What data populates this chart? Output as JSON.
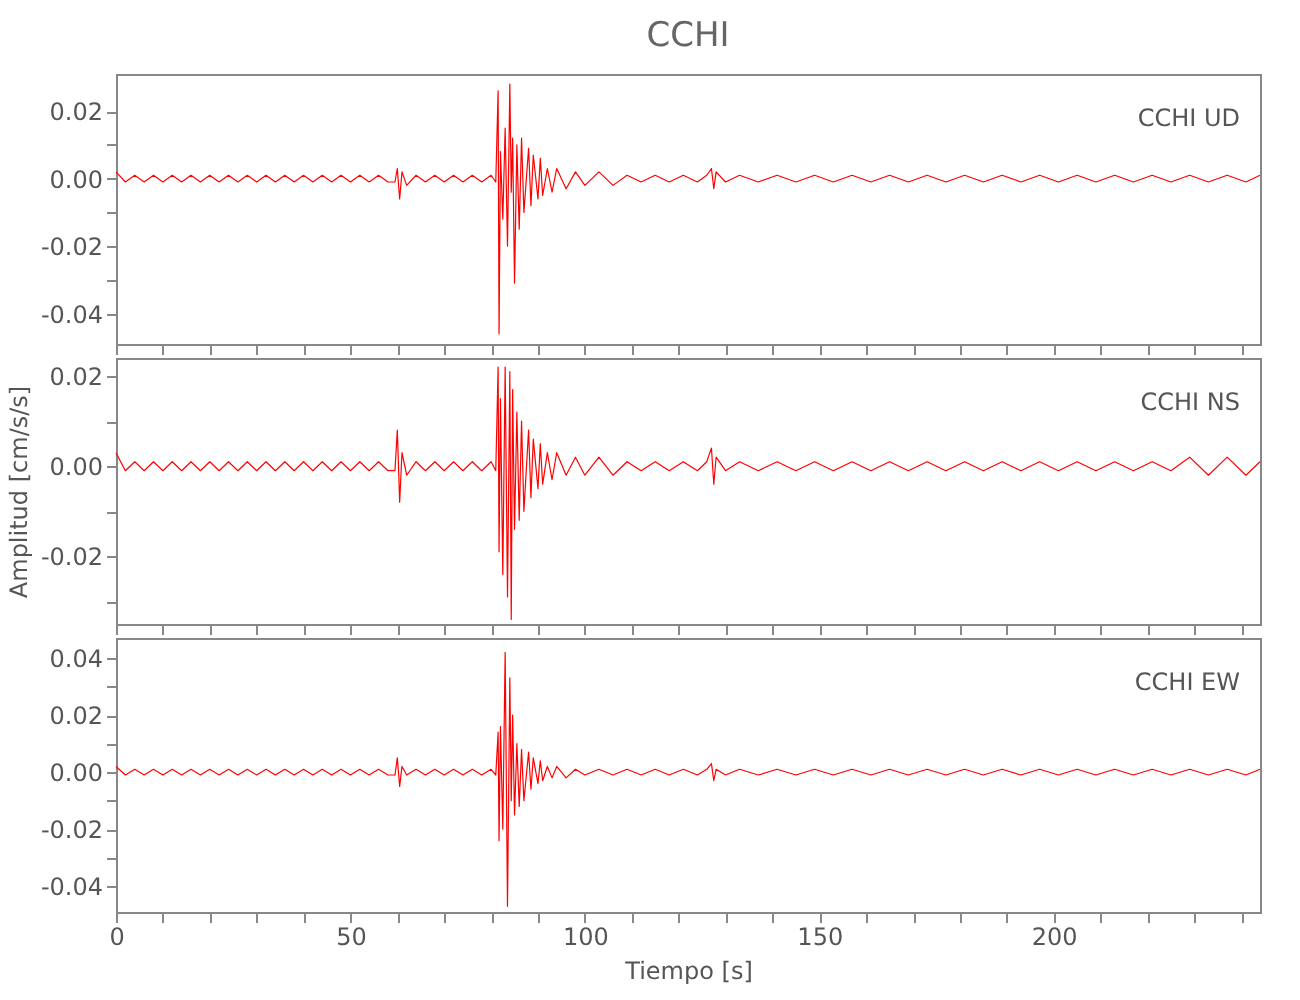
{
  "chart_data": [
    {
      "type": "line",
      "title": "CCHI",
      "annotations": [
        "CCHI   UD"
      ],
      "tick_labels": "y",
      "grid": false,
      "xlim": [
        0,
        244
      ],
      "ylim": [
        -0.049,
        0.031
      ],
      "xticks": [
        0,
        {
          "value": 10,
          "label": null
        },
        {
          "value": 20,
          "label": null
        },
        {
          "value": 30,
          "label": null
        },
        {
          "value": 40,
          "label": null
        },
        50,
        {
          "value": 60,
          "label": null
        },
        {
          "value": 70,
          "label": null
        },
        {
          "value": 80,
          "label": null
        },
        {
          "value": 90,
          "label": null
        },
        100,
        {
          "value": 110,
          "label": null
        },
        {
          "value": 120,
          "label": null
        },
        {
          "value": 130,
          "label": null
        },
        {
          "value": 140,
          "label": null
        },
        150,
        {
          "value": 160,
          "label": null
        },
        {
          "value": 170,
          "label": null
        },
        {
          "value": 180,
          "label": null
        },
        {
          "value": 190,
          "label": null
        },
        200,
        {
          "value": 210,
          "label": null
        },
        {
          "value": 220,
          "label": null
        },
        {
          "value": 230,
          "label": null
        },
        {
          "value": 240,
          "label": null
        }
      ],
      "yticks": [
        -0.04,
        {
          "value": -0.03,
          "label": null
        },
        -0.02,
        {
          "value": -0.01,
          "label": null
        },
        {
          "value": 0,
          "label": "0.00"
        },
        {
          "value": 0.01,
          "label": null
        },
        0.02
      ],
      "x": [
        0,
        2,
        4,
        6,
        8,
        10,
        12,
        14,
        16,
        18,
        20,
        22,
        24,
        26,
        28,
        30,
        32,
        34,
        36,
        38,
        40,
        42,
        44,
        46,
        48,
        50,
        52,
        54,
        56,
        58,
        59.5,
        60,
        60.5,
        61,
        62,
        64,
        66,
        68,
        70,
        72,
        74,
        76,
        78,
        80,
        81,
        81.5,
        81.7,
        82,
        82.5,
        83,
        83.5,
        84,
        84.3,
        84.6,
        85,
        85.5,
        86,
        86.5,
        87,
        88,
        88.5,
        89,
        90,
        90.5,
        91,
        92,
        93,
        94,
        96,
        98,
        100,
        103,
        106,
        109,
        112,
        115,
        118,
        121,
        124,
        126,
        127,
        127.5,
        128,
        130,
        133,
        137,
        141,
        145,
        149,
        153,
        157,
        161,
        165,
        169,
        173,
        177,
        181,
        185,
        189,
        193,
        197,
        201,
        205,
        209,
        213,
        217,
        221,
        225,
        229,
        233,
        237,
        241,
        244
      ],
      "series": [
        {
          "color": "#ff0000",
          "values": [
            0.002,
            -0.001,
            0.001,
            -0.001,
            0.001,
            -0.001,
            0.001,
            -0.001,
            0.001,
            -0.001,
            0.001,
            -0.001,
            0.001,
            -0.001,
            0.001,
            -0.001,
            0.001,
            -0.001,
            0.001,
            -0.001,
            0.001,
            -0.001,
            0.001,
            -0.001,
            0.001,
            -0.001,
            0.001,
            -0.001,
            0.001,
            -0.001,
            -0.001,
            0.003,
            -0.006,
            0.002,
            -0.002,
            0.001,
            -0.001,
            0.001,
            -0.001,
            0.001,
            -0.001,
            0.001,
            -0.001,
            0.001,
            -0.001,
            0.026,
            -0.046,
            0.008,
            -0.012,
            0.015,
            -0.02,
            0.028,
            -0.004,
            0.012,
            -0.031,
            0.01,
            -0.015,
            0.012,
            -0.01,
            0.009,
            -0.008,
            0.007,
            -0.006,
            0.006,
            -0.005,
            0.003,
            -0.004,
            0.003,
            -0.003,
            0.002,
            -0.002,
            0.002,
            -0.002,
            0.001,
            -0.001,
            0.001,
            -0.001,
            0.001,
            -0.001,
            0.001,
            0.003,
            -0.003,
            0.002,
            -0.001,
            0.001,
            -0.001,
            0.001,
            -0.001,
            0.001,
            -0.001,
            0.001,
            -0.001,
            0.001,
            -0.001,
            0.001,
            -0.001,
            0.001,
            -0.001,
            0.001,
            -0.001,
            0.001,
            -0.001,
            0.001,
            -0.001,
            0.001,
            -0.001,
            0.001,
            -0.001,
            0.001,
            -0.001,
            0.001,
            -0.001,
            0.001
          ]
        }
      ]
    },
    {
      "type": "line",
      "ylabel": "Amplitud [cm/s/s]",
      "annotations": [
        "CCHI   NS"
      ],
      "tick_labels": "y",
      "grid": false,
      "xlim": [
        0,
        244
      ],
      "ylim": [
        -0.035,
        0.024
      ],
      "xticks": [
        0,
        {
          "value": 10,
          "label": null
        },
        {
          "value": 20,
          "label": null
        },
        {
          "value": 30,
          "label": null
        },
        {
          "value": 40,
          "label": null
        },
        50,
        {
          "value": 60,
          "label": null
        },
        {
          "value": 70,
          "label": null
        },
        {
          "value": 80,
          "label": null
        },
        {
          "value": 90,
          "label": null
        },
        100,
        {
          "value": 110,
          "label": null
        },
        {
          "value": 120,
          "label": null
        },
        {
          "value": 130,
          "label": null
        },
        {
          "value": 140,
          "label": null
        },
        150,
        {
          "value": 160,
          "label": null
        },
        {
          "value": 170,
          "label": null
        },
        {
          "value": 180,
          "label": null
        },
        {
          "value": 190,
          "label": null
        },
        200,
        {
          "value": 210,
          "label": null
        },
        {
          "value": 220,
          "label": null
        },
        {
          "value": 230,
          "label": null
        },
        {
          "value": 240,
          "label": null
        }
      ],
      "yticks": [
        {
          "value": -0.03,
          "label": null
        },
        -0.02,
        {
          "value": -0.01,
          "label": null
        },
        {
          "value": 0,
          "label": "0.00"
        },
        {
          "value": 0.01,
          "label": null
        },
        0.02
      ],
      "x": [
        0,
        2,
        4,
        6,
        8,
        10,
        12,
        14,
        16,
        18,
        20,
        22,
        24,
        26,
        28,
        30,
        32,
        34,
        36,
        38,
        40,
        42,
        44,
        46,
        48,
        50,
        52,
        54,
        56,
        58,
        59.5,
        60,
        60.5,
        61,
        62,
        64,
        66,
        68,
        70,
        72,
        74,
        76,
        78,
        80,
        81,
        81.5,
        81.7,
        82,
        82.5,
        83,
        83.5,
        84,
        84.3,
        84.6,
        85,
        85.5,
        86,
        86.5,
        87,
        88,
        88.5,
        89,
        90,
        90.5,
        91,
        92,
        93,
        94,
        96,
        98,
        100,
        103,
        106,
        109,
        112,
        115,
        118,
        121,
        124,
        126,
        127,
        127.5,
        128,
        130,
        133,
        137,
        141,
        145,
        149,
        153,
        157,
        161,
        165,
        169,
        173,
        177,
        181,
        185,
        189,
        193,
        197,
        201,
        205,
        209,
        213,
        217,
        221,
        225,
        229,
        233,
        237,
        241,
        244
      ],
      "series": [
        {
          "color": "#ff0000",
          "values": [
            0.003,
            -0.001,
            0.001,
            -0.001,
            0.001,
            -0.001,
            0.001,
            -0.001,
            0.001,
            -0.001,
            0.001,
            -0.001,
            0.001,
            -0.001,
            0.001,
            -0.001,
            0.001,
            -0.001,
            0.001,
            -0.001,
            0.001,
            -0.001,
            0.001,
            -0.001,
            0.001,
            -0.001,
            0.001,
            -0.001,
            0.001,
            -0.001,
            -0.001,
            0.008,
            -0.008,
            0.003,
            -0.002,
            0.001,
            -0.001,
            0.001,
            -0.001,
            0.001,
            -0.001,
            0.001,
            -0.001,
            0.001,
            -0.001,
            0.022,
            -0.019,
            0.015,
            -0.024,
            0.022,
            -0.029,
            0.021,
            -0.034,
            0.017,
            -0.014,
            0.012,
            -0.012,
            0.01,
            -0.01,
            0.008,
            -0.007,
            0.006,
            -0.005,
            0.005,
            -0.004,
            0.003,
            -0.003,
            0.003,
            -0.002,
            0.002,
            -0.002,
            0.002,
            -0.002,
            0.001,
            -0.001,
            0.001,
            -0.001,
            0.001,
            -0.001,
            0.001,
            0.004,
            -0.004,
            0.002,
            -0.001,
            0.001,
            -0.001,
            0.001,
            -0.001,
            0.001,
            -0.001,
            0.001,
            -0.001,
            0.001,
            -0.001,
            0.001,
            -0.001,
            0.001,
            -0.001,
            0.001,
            -0.001,
            0.001,
            -0.001,
            0.001,
            -0.001,
            0.001,
            -0.001,
            0.001,
            -0.001,
            0.002,
            -0.002,
            0.002,
            -0.002,
            0.001
          ]
        }
      ]
    },
    {
      "type": "line",
      "xlabel": "Tiempo [s]",
      "annotations": [
        "CCHI   EW"
      ],
      "grid": false,
      "xlim": [
        0,
        244
      ],
      "ylim": [
        -0.049,
        0.047
      ],
      "xticks": [
        0,
        {
          "value": 10,
          "label": null
        },
        {
          "value": 20,
          "label": null
        },
        {
          "value": 30,
          "label": null
        },
        {
          "value": 40,
          "label": null
        },
        50,
        {
          "value": 60,
          "label": null
        },
        {
          "value": 70,
          "label": null
        },
        {
          "value": 80,
          "label": null
        },
        {
          "value": 90,
          "label": null
        },
        100,
        {
          "value": 110,
          "label": null
        },
        {
          "value": 120,
          "label": null
        },
        {
          "value": 130,
          "label": null
        },
        {
          "value": 140,
          "label": null
        },
        150,
        {
          "value": 160,
          "label": null
        },
        {
          "value": 170,
          "label": null
        },
        {
          "value": 180,
          "label": null
        },
        {
          "value": 190,
          "label": null
        },
        200,
        {
          "value": 210,
          "label": null
        },
        {
          "value": 220,
          "label": null
        },
        {
          "value": 230,
          "label": null
        },
        {
          "value": 240,
          "label": null
        }
      ],
      "yticks": [
        -0.04,
        {
          "value": -0.03,
          "label": null
        },
        -0.02,
        {
          "value": -0.01,
          "label": null
        },
        {
          "value": 0,
          "label": "0.00"
        },
        {
          "value": 0.01,
          "label": null
        },
        0.02,
        {
          "value": 0.03,
          "label": null
        },
        0.04
      ],
      "x": [
        0,
        2,
        4,
        6,
        8,
        10,
        12,
        14,
        16,
        18,
        20,
        22,
        24,
        26,
        28,
        30,
        32,
        34,
        36,
        38,
        40,
        42,
        44,
        46,
        48,
        50,
        52,
        54,
        56,
        58,
        59.5,
        60,
        60.5,
        61,
        62,
        64,
        66,
        68,
        70,
        72,
        74,
        76,
        78,
        80,
        81,
        81.5,
        81.7,
        82,
        82.5,
        83,
        83.5,
        84,
        84.3,
        84.6,
        85,
        85.5,
        86,
        86.5,
        87,
        88,
        88.5,
        89,
        90,
        90.5,
        91,
        92,
        93,
        94,
        96,
        98,
        100,
        103,
        106,
        109,
        112,
        115,
        118,
        121,
        124,
        126,
        127,
        127.5,
        128,
        130,
        133,
        137,
        141,
        145,
        149,
        153,
        157,
        161,
        165,
        169,
        173,
        177,
        181,
        185,
        189,
        193,
        197,
        201,
        205,
        209,
        213,
        217,
        221,
        225,
        229,
        233,
        237,
        241,
        244
      ],
      "series": [
        {
          "color": "#ff0000",
          "values": [
            0.002,
            -0.001,
            0.001,
            -0.001,
            0.001,
            -0.001,
            0.001,
            -0.001,
            0.001,
            -0.001,
            0.001,
            -0.001,
            0.001,
            -0.001,
            0.001,
            -0.001,
            0.001,
            -0.001,
            0.001,
            -0.001,
            0.001,
            -0.001,
            0.001,
            -0.001,
            0.001,
            -0.001,
            0.001,
            -0.001,
            0.001,
            -0.001,
            -0.001,
            0.005,
            -0.005,
            0.002,
            -0.001,
            0.001,
            -0.001,
            0.001,
            -0.001,
            0.001,
            -0.001,
            0.001,
            -0.001,
            0.001,
            -0.001,
            0.014,
            -0.024,
            0.016,
            -0.02,
            0.042,
            -0.047,
            0.033,
            -0.01,
            0.02,
            -0.015,
            0.01,
            -0.012,
            0.008,
            -0.01,
            0.007,
            -0.006,
            0.005,
            -0.004,
            0.004,
            -0.003,
            0.002,
            -0.002,
            0.002,
            -0.002,
            0.001,
            -0.001,
            0.001,
            -0.001,
            0.001,
            -0.001,
            0.001,
            -0.001,
            0.001,
            -0.001,
            0.001,
            0.003,
            -0.003,
            0.001,
            -0.001,
            0.001,
            -0.001,
            0.001,
            -0.001,
            0.001,
            -0.001,
            0.001,
            -0.001,
            0.001,
            -0.001,
            0.001,
            -0.001,
            0.001,
            -0.001,
            0.001,
            -0.001,
            0.001,
            -0.001,
            0.001,
            -0.001,
            0.001,
            -0.001,
            0.001,
            -0.001,
            0.001,
            -0.001,
            0.001,
            -0.001,
            0.001
          ]
        }
      ]
    }
  ]
}
